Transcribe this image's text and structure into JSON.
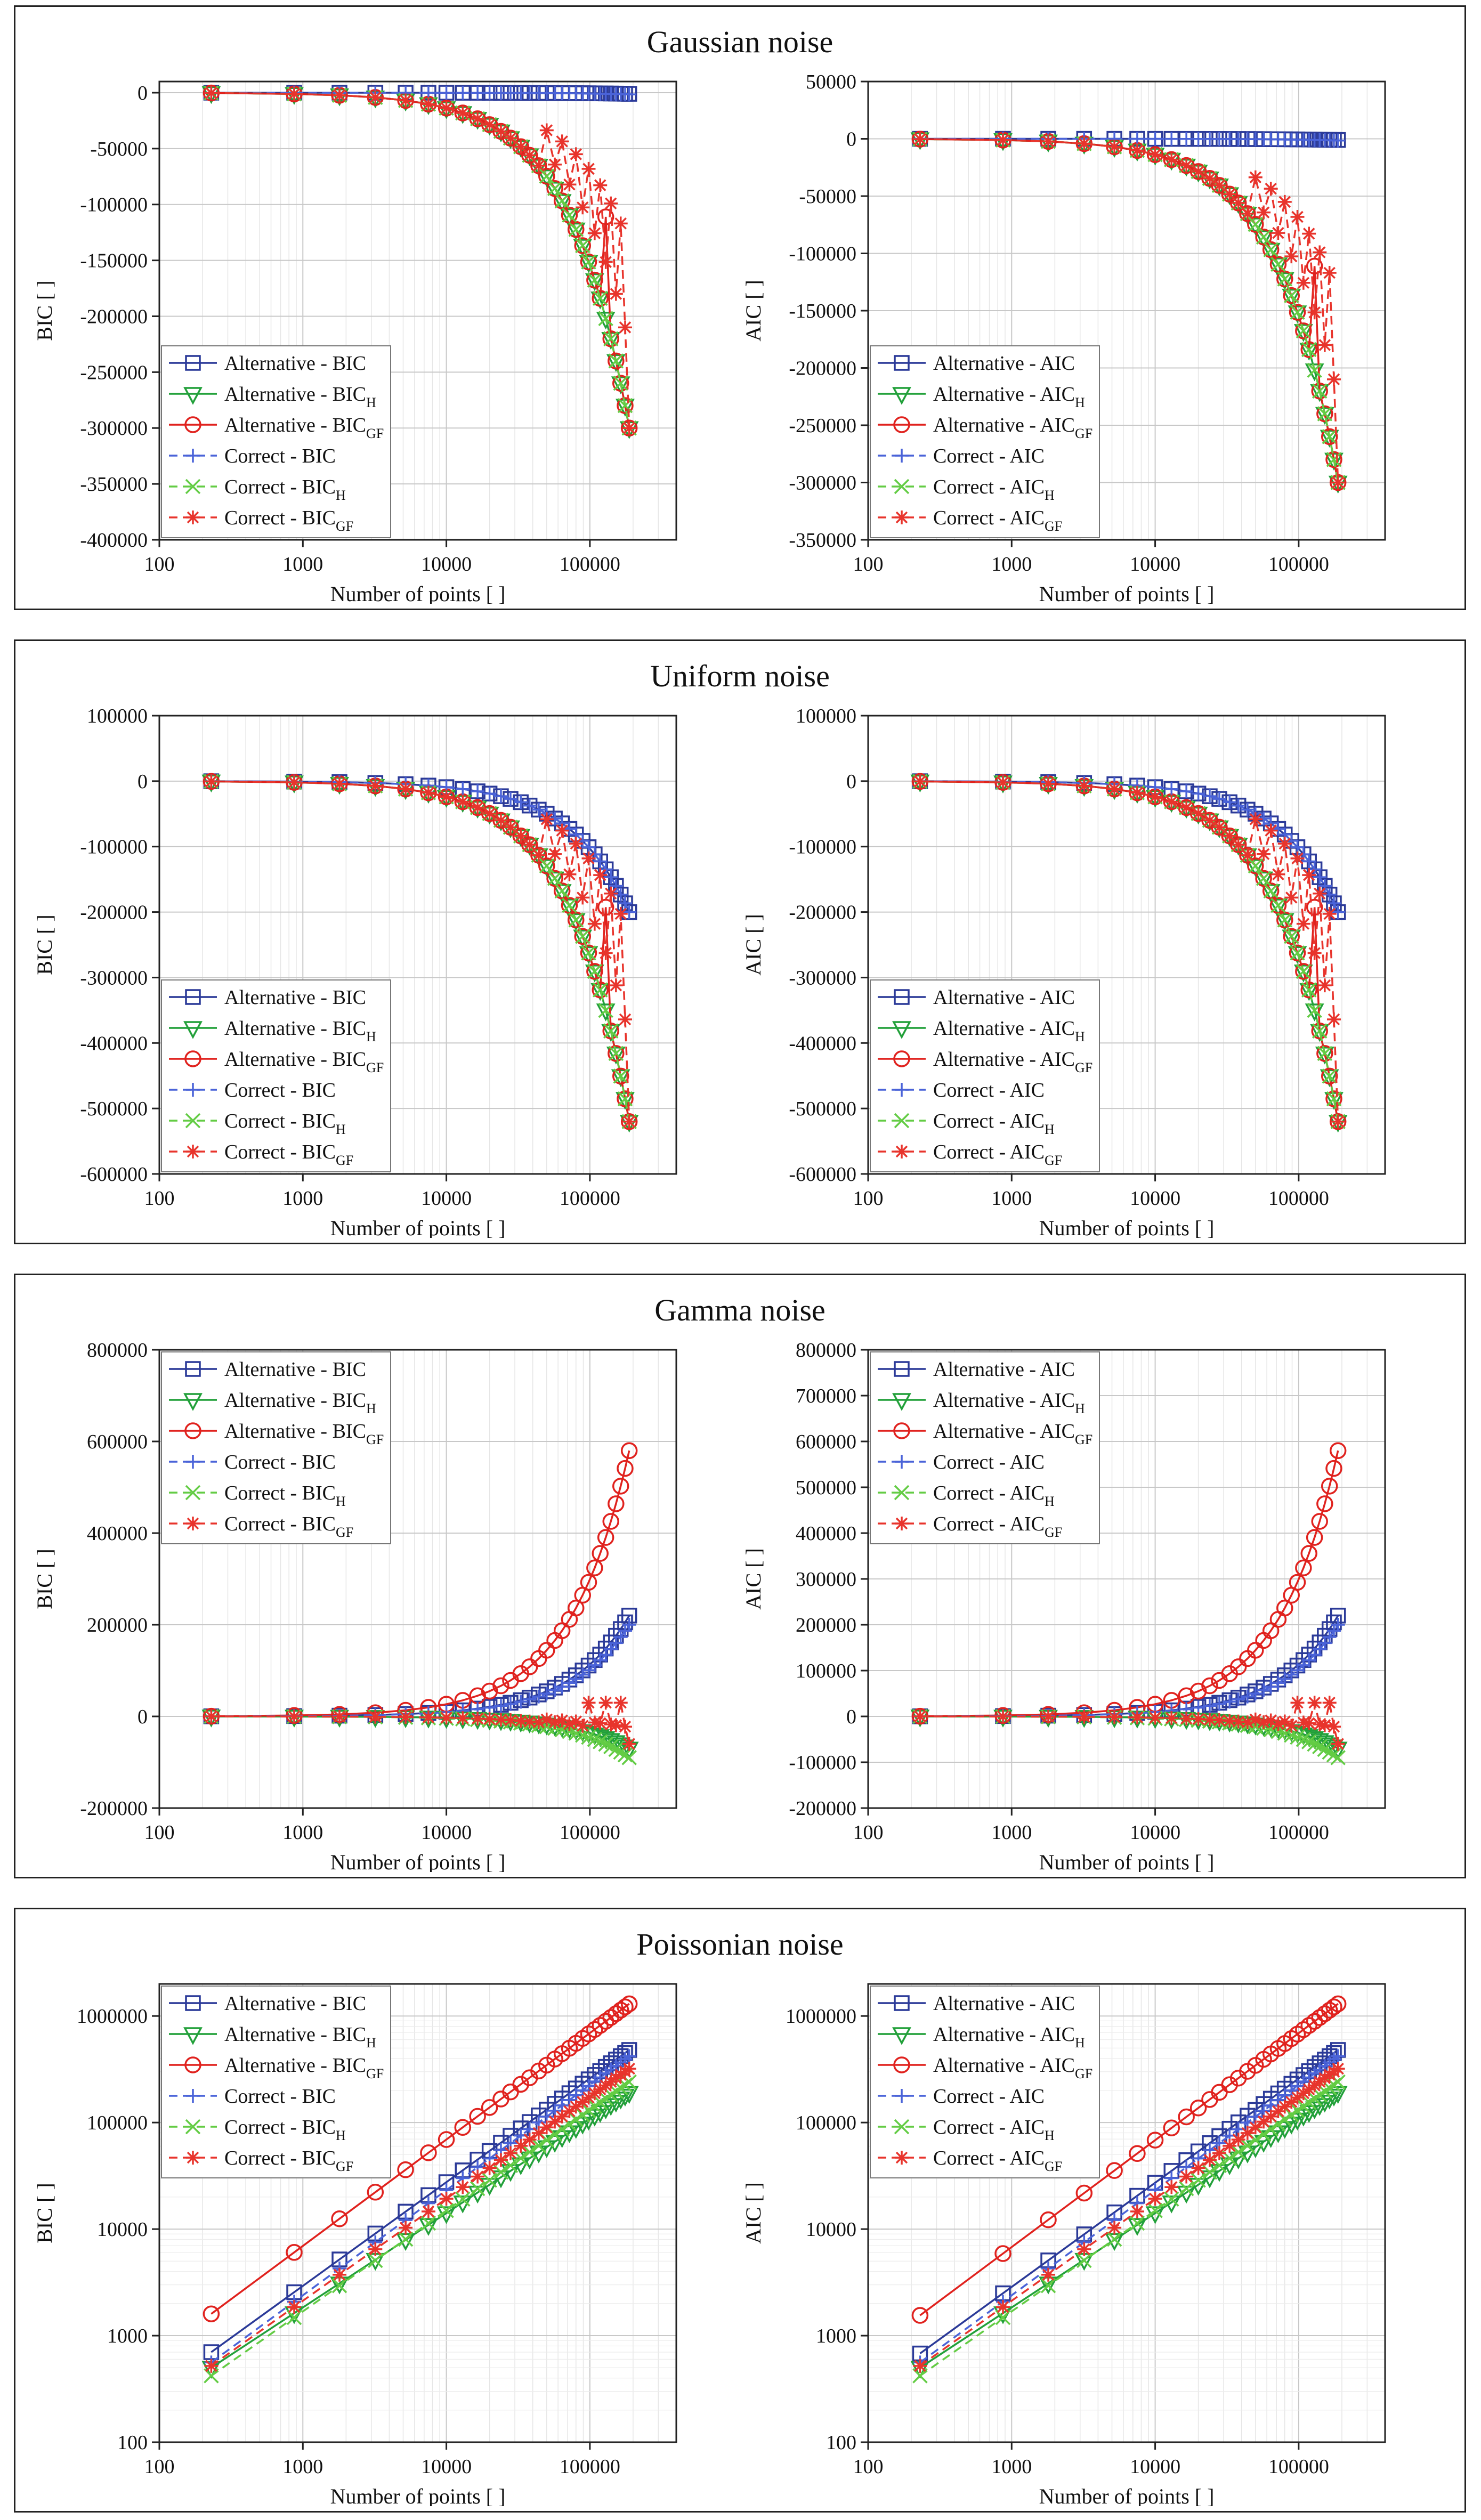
{
  "colors": {
    "blue": "#2b3a98",
    "green": "#22a03a",
    "red": "#e0221e",
    "blue_dash": "#4a63d8",
    "green_dash": "#63cc44",
    "red_dash": "#e8342c"
  },
  "panels": [
    {
      "title": "Gaussian noise"
    },
    {
      "title": "Uniform noise"
    },
    {
      "title": "Gamma noise"
    },
    {
      "title": "Poissonian noise"
    }
  ],
  "chart_data": [
    {
      "panel": 0,
      "type": "line",
      "metric": "BIC",
      "scale": "linear",
      "ylabel": "BIC [ ]",
      "xlabel": "Number of points [ ]",
      "xlim": [
        100,
        400000
      ],
      "ylim": [
        -400000,
        10000
      ],
      "yticks": [
        0,
        -50000,
        -100000,
        -150000,
        -200000,
        -250000,
        -300000,
        -350000,
        -400000
      ],
      "legend_position": "bottom-left",
      "final": {
        "alt": -1000,
        "alt_h": -300000,
        "alt_gf": -300000,
        "cor": -1500,
        "cor_h": -300000,
        "cor_gf": -300000
      }
    },
    {
      "panel": 0,
      "type": "line",
      "metric": "AIC",
      "scale": "linear",
      "ylabel": "AIC [ ]",
      "xlabel": "Number of points [ ]",
      "xlim": [
        100,
        400000
      ],
      "ylim": [
        -350000,
        50000
      ],
      "yticks": [
        50000,
        0,
        -50000,
        -100000,
        -150000,
        -200000,
        -250000,
        -300000,
        -350000
      ],
      "legend_position": "bottom-left",
      "final": {
        "alt": -1000,
        "alt_h": -300000,
        "alt_gf": -300000,
        "cor": -1500,
        "cor_h": -300000,
        "cor_gf": -300000
      }
    },
    {
      "panel": 1,
      "type": "line",
      "metric": "BIC",
      "scale": "linear",
      "ylabel": "BIC [ ]",
      "xlabel": "Number of points [ ]",
      "xlim": [
        100,
        400000
      ],
      "ylim": [
        -600000,
        100000
      ],
      "yticks": [
        100000,
        0,
        -100000,
        -200000,
        -300000,
        -400000,
        -500000,
        -600000
      ],
      "legend_position": "bottom-left",
      "final": {
        "alt": -200000,
        "alt_h": -520000,
        "alt_gf": -520000,
        "cor": -200000,
        "cor_h": -520000,
        "cor_gf": -520000
      }
    },
    {
      "panel": 1,
      "type": "line",
      "metric": "AIC",
      "scale": "linear",
      "ylabel": "AIC [ ]",
      "xlabel": "Number of points [ ]",
      "xlim": [
        100,
        400000
      ],
      "ylim": [
        -600000,
        100000
      ],
      "yticks": [
        100000,
        0,
        -100000,
        -200000,
        -300000,
        -400000,
        -500000,
        -600000
      ],
      "legend_position": "bottom-left",
      "final": {
        "alt": -200000,
        "alt_h": -520000,
        "alt_gf": -520000,
        "cor": -200000,
        "cor_h": -520000,
        "cor_gf": -520000
      }
    },
    {
      "panel": 2,
      "type": "line",
      "metric": "BIC",
      "scale": "linear",
      "ylabel": "BIC [ ]",
      "xlabel": "Number of points [ ]",
      "xlim": [
        100,
        400000
      ],
      "ylim": [
        -200000,
        800000
      ],
      "yticks": [
        800000,
        600000,
        400000,
        200000,
        0,
        -200000
      ],
      "legend_position": "top-left",
      "final": {
        "alt": 220000,
        "alt_h": -70000,
        "alt_gf": 580000,
        "cor": 200000,
        "cor_h": -90000,
        "cor_gf": -60000
      }
    },
    {
      "panel": 2,
      "type": "line",
      "metric": "AIC",
      "scale": "linear",
      "ylabel": "AIC [ ]",
      "xlabel": "Number of points [ ]",
      "xlim": [
        100,
        400000
      ],
      "ylim": [
        -200000,
        800000
      ],
      "yticks": [
        800000,
        700000,
        600000,
        500000,
        400000,
        300000,
        200000,
        100000,
        0,
        -100000,
        -200000
      ],
      "legend_position": "top-left",
      "final": {
        "alt": 220000,
        "alt_h": -70000,
        "alt_gf": 580000,
        "cor": 200000,
        "cor_h": -90000,
        "cor_gf": -60000
      }
    },
    {
      "panel": 3,
      "type": "line",
      "metric": "BIC",
      "scale": "log",
      "ylabel": "BIC [ ]",
      "xlabel": "Number of points [ ]",
      "xlim": [
        100,
        400000
      ],
      "ylim": [
        100,
        2000000
      ],
      "yticks": [
        1000000,
        100000,
        10000,
        1000,
        100
      ],
      "legend_position": "top-left",
      "start": {
        "alt": 700,
        "alt_h": 500,
        "alt_gf": 1600,
        "cor": 560,
        "cor_h": 420,
        "cor_gf": 520
      },
      "final": {
        "alt": 480000,
        "alt_h": 190000,
        "alt_gf": 1300000,
        "cor": 420000,
        "cor_h": 240000,
        "cor_gf": 320000
      }
    },
    {
      "panel": 3,
      "type": "line",
      "metric": "AIC",
      "scale": "log",
      "ylabel": "AIC [ ]",
      "xlabel": "Number of points [ ]",
      "xlim": [
        100,
        400000
      ],
      "ylim": [
        100,
        2000000
      ],
      "yticks": [
        1000000,
        100000,
        10000,
        1000,
        100
      ],
      "legend_position": "top-left",
      "start": {
        "alt": 680,
        "alt_h": 500,
        "alt_gf": 1550,
        "cor": 560,
        "cor_h": 420,
        "cor_gf": 520
      },
      "final": {
        "alt": 480000,
        "alt_h": 190000,
        "alt_gf": 1300000,
        "cor": 420000,
        "cor_h": 240000,
        "cor_gf": 320000
      }
    }
  ],
  "x_points": [
    230,
    870,
    1800,
    3200,
    5200,
    7500,
    10000,
    13000,
    16500,
    20000,
    24000,
    28000,
    33000,
    38000,
    44000,
    50000,
    57000,
    64000,
    72000,
    80000,
    89000,
    98000,
    108000,
    118000,
    129000,
    140000,
    152000,
    164000,
    176000,
    188000
  ],
  "x_ticks": [
    100,
    1000,
    10000,
    100000
  ],
  "legend": [
    {
      "key": "alt",
      "prefix": "Alternative - ",
      "sub": "",
      "marker": "square",
      "dash": false,
      "color": "blue"
    },
    {
      "key": "alt_h",
      "prefix": "Alternative - ",
      "sub": "H",
      "marker": "triangle",
      "dash": false,
      "color": "green"
    },
    {
      "key": "alt_gf",
      "prefix": "Alternative - ",
      "sub": "GF",
      "marker": "circle",
      "dash": false,
      "color": "red"
    },
    {
      "key": "cor",
      "prefix": "Correct - ",
      "sub": "",
      "marker": "plus",
      "dash": true,
      "color": "blue_dash"
    },
    {
      "key": "cor_h",
      "prefix": "Correct - ",
      "sub": "H",
      "marker": "cross",
      "dash": true,
      "color": "green_dash"
    },
    {
      "key": "cor_gf",
      "prefix": "Correct - ",
      "sub": "GF",
      "marker": "star",
      "dash": true,
      "color": "red_dash"
    }
  ]
}
